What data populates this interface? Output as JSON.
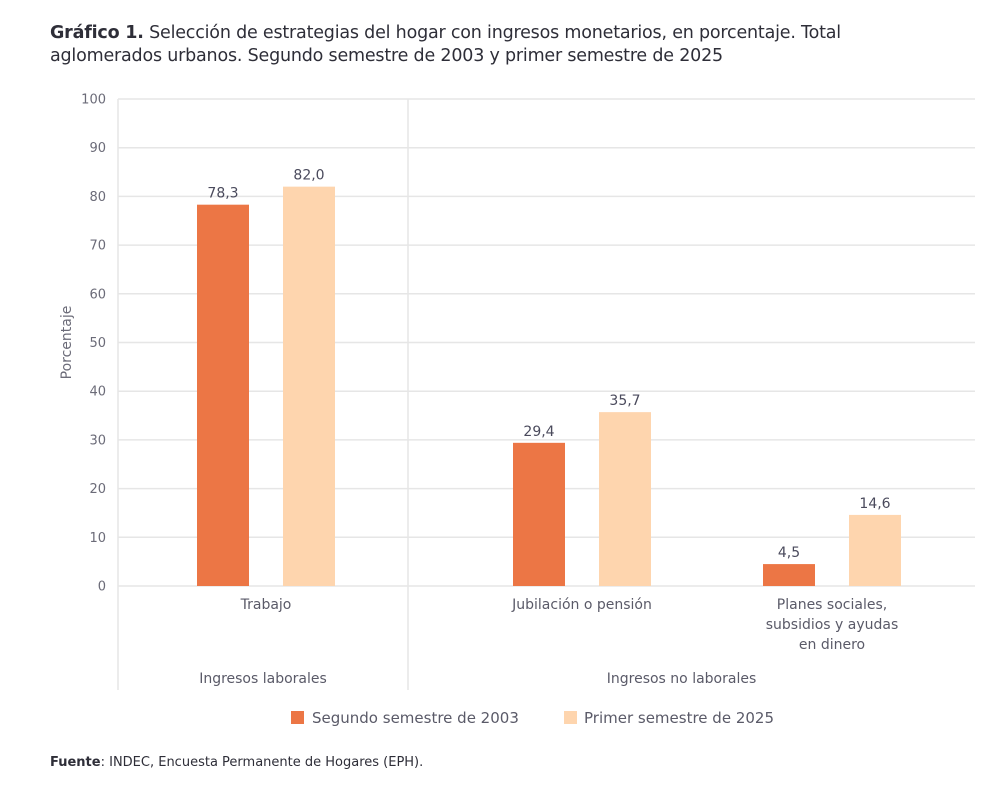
{
  "title": {
    "prefix": "Gráfico 1.",
    "text": " Selección de estrategias del hogar con ingresos monetarios, en porcentaje. Total aglomerados urbanos. Segundo semestre de 2003 y primer semestre de 2025"
  },
  "source": {
    "label": "Fuente",
    "text": ": INDEC, Encuesta Permanente de Hogares (EPH)."
  },
  "colors": {
    "series1": "#ec7645",
    "series2": "#fed5ae",
    "grid": "#e6e6e6"
  },
  "chart_data": {
    "type": "bar",
    "title": "Selección de estrategias del hogar con ingresos monetarios, en porcentaje. Total aglomerados urbanos. Segundo semestre de 2003 y primer semestre de 2025",
    "xlabel": "",
    "ylabel": "Porcentaje",
    "ylim": [
      0,
      100
    ],
    "yticks": [
      0,
      10,
      20,
      30,
      40,
      50,
      60,
      70,
      80,
      90,
      100
    ],
    "grid": true,
    "categories": [
      "Trabajo",
      "Jubilación o pensión",
      "Planes sociales, subsidios y ayudas en dinero"
    ],
    "category_lines": [
      [
        "Trabajo"
      ],
      [
        "Jubilación o pensión"
      ],
      [
        "Planes sociales,",
        "subsidios y ayudas",
        "en dinero"
      ]
    ],
    "groups": [
      {
        "label": "Ingresos laborales",
        "categories": [
          "Trabajo"
        ]
      },
      {
        "label": "Ingresos no laborales",
        "categories": [
          "Jubilación o pensión",
          "Planes sociales, subsidios y ayudas en dinero"
        ]
      }
    ],
    "series": [
      {
        "name": "Segundo semestre de 2003",
        "values": [
          78.3,
          29.4,
          4.5
        ],
        "labels": [
          "78,3",
          "29,4",
          "4,5"
        ]
      },
      {
        "name": "Primer semestre de 2025",
        "values": [
          82.0,
          35.7,
          14.6
        ],
        "labels": [
          "82,0",
          "35,7",
          "14,6"
        ]
      }
    ],
    "legend": "bottom"
  }
}
